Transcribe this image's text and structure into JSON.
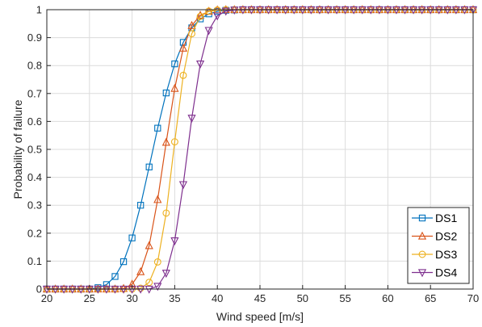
{
  "chart_data": {
    "type": "line",
    "xlabel": "Wind speed [m/s]",
    "ylabel": "Probability of failure",
    "xlim": [
      20,
      70
    ],
    "ylim": [
      0,
      1
    ],
    "xticks": [
      20,
      25,
      30,
      35,
      40,
      45,
      50,
      55,
      60,
      65,
      70
    ],
    "yticks": [
      0,
      0.1,
      0.2,
      0.3,
      0.4,
      0.5,
      0.6,
      0.7,
      0.8,
      0.9,
      1
    ],
    "ytick_labels": [
      "0",
      "0.1",
      "0.2",
      "0.3",
      "0.4",
      "0.5",
      "0.6",
      "0.7",
      "0.8",
      "0.9",
      "1"
    ],
    "grid": true,
    "legend_position": "bottom-right",
    "x": [
      20,
      21,
      22,
      23,
      24,
      25,
      26,
      27,
      28,
      29,
      30,
      31,
      32,
      33,
      34,
      35,
      36,
      37,
      38,
      39,
      40,
      41,
      42,
      43,
      44,
      45,
      46,
      47,
      48,
      49,
      50,
      51,
      52,
      53,
      54,
      55,
      56,
      57,
      58,
      59,
      60,
      61,
      62,
      63,
      64,
      65,
      66,
      67,
      68,
      69,
      70
    ],
    "series": [
      {
        "name": "DS1",
        "color": "#0072BD",
        "marker": "square",
        "values": [
          0,
          0,
          0,
          0,
          0,
          0,
          0.005,
          0.016,
          0.045,
          0.098,
          0.183,
          0.3,
          0.437,
          0.576,
          0.702,
          0.806,
          0.883,
          0.935,
          0.967,
          0.985,
          0.994,
          0.998,
          0.999,
          1,
          1,
          1,
          1,
          1,
          1,
          1,
          1,
          1,
          1,
          1,
          1,
          1,
          1,
          1,
          1,
          1,
          1,
          1,
          1,
          1,
          1,
          1,
          1,
          1,
          1,
          1,
          1
        ]
      },
      {
        "name": "DS2",
        "color": "#D95319",
        "marker": "triangle-up",
        "values": [
          0,
          0,
          0,
          0,
          0,
          0,
          0,
          0,
          0,
          0.002,
          0.017,
          0.062,
          0.155,
          0.32,
          0.525,
          0.718,
          0.862,
          0.943,
          0.98,
          0.994,
          0.999,
          1,
          1,
          1,
          1,
          1,
          1,
          1,
          1,
          1,
          1,
          1,
          1,
          1,
          1,
          1,
          1,
          1,
          1,
          1,
          1,
          1,
          1,
          1,
          1,
          1,
          1,
          1,
          1,
          1,
          1
        ]
      },
      {
        "name": "DS3",
        "color": "#EDB120",
        "marker": "circle",
        "values": [
          0,
          0,
          0,
          0,
          0,
          0,
          0,
          0,
          0,
          0,
          0,
          0.003,
          0.024,
          0.097,
          0.272,
          0.527,
          0.765,
          0.914,
          0.976,
          0.995,
          0.999,
          1,
          1,
          1,
          1,
          1,
          1,
          1,
          1,
          1,
          1,
          1,
          1,
          1,
          1,
          1,
          1,
          1,
          1,
          1,
          1,
          1,
          1,
          1,
          1,
          1,
          1,
          1,
          1,
          1,
          1
        ]
      },
      {
        "name": "DS4",
        "color": "#7E2F8E",
        "marker": "triangle-down",
        "values": [
          0,
          0,
          0,
          0,
          0,
          0,
          0,
          0,
          0,
          0,
          0,
          0,
          0,
          0.01,
          0.057,
          0.173,
          0.374,
          0.612,
          0.806,
          0.926,
          0.978,
          0.995,
          0.999,
          1,
          1,
          1,
          1,
          1,
          1,
          1,
          1,
          1,
          1,
          1,
          1,
          1,
          1,
          1,
          1,
          1,
          1,
          1,
          1,
          1,
          1,
          1,
          1,
          1,
          1,
          1,
          1
        ]
      }
    ]
  }
}
